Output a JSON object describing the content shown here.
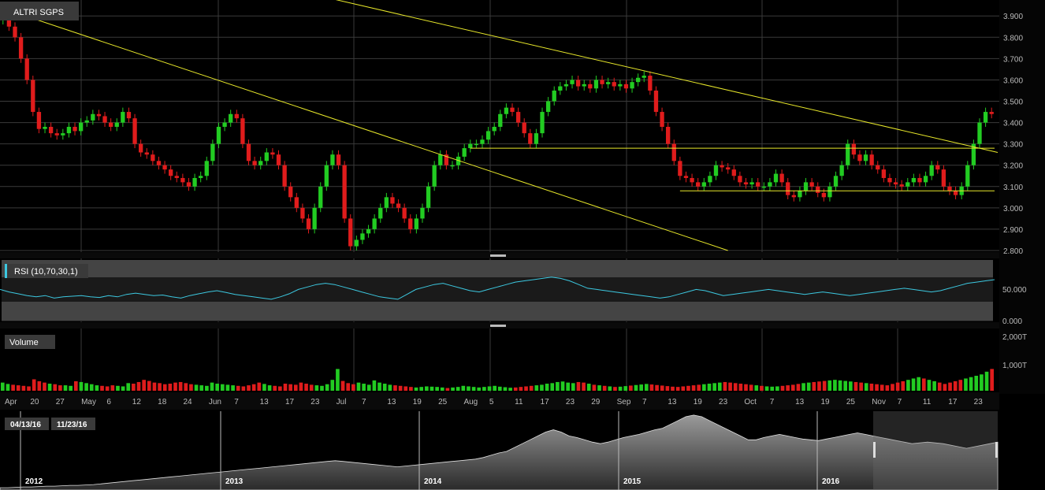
{
  "app": {
    "symbol_label": "ALTRI SGPS"
  },
  "price_panel": {
    "y_ticks": [
      "3.900",
      "3.800",
      "3.700",
      "3.600",
      "3.500",
      "3.400",
      "3.300",
      "3.200",
      "3.100",
      "3.000",
      "2.900",
      "2.800"
    ]
  },
  "rsi_panel": {
    "label": "RSI (10,70,30,1)",
    "y_ticks": [
      "50.000",
      "0.000"
    ]
  },
  "volume_panel": {
    "label": "Volume",
    "y_ticks": [
      "2,000T",
      "1,000T"
    ]
  },
  "x_axis": {
    "labels": [
      "Apr",
      "20",
      "27",
      "May",
      "6",
      "12",
      "18",
      "24",
      "Jun",
      "7",
      "13",
      "17",
      "23",
      "Jul",
      "7",
      "13",
      "19",
      "25",
      "Aug",
      "5",
      "11",
      "17",
      "23",
      "29",
      "Sep",
      "7",
      "13",
      "19",
      "23",
      "Oct",
      "7",
      "13",
      "19",
      "25",
      "Nov",
      "7",
      "11",
      "17",
      "23"
    ]
  },
  "navigator": {
    "date_from": "04/13/16",
    "date_to": "11/23/16",
    "year_labels": [
      "2012",
      "2013",
      "2014",
      "2015",
      "2016"
    ]
  },
  "colors": {
    "up": "#22cc22",
    "down": "#e01c1c",
    "trendline": "#e8e82a",
    "rsi_line": "#3cc8e0",
    "grid": "#3a3a3a",
    "panel_label_bg": "#3a3a3a"
  },
  "chart_data": [
    {
      "type": "candlestick",
      "title": "ALTRI SGPS",
      "ylim": [
        2.8,
        3.96
      ],
      "daily_close": [
        3.93,
        3.85,
        3.8,
        3.7,
        3.6,
        3.45,
        3.37,
        3.38,
        3.35,
        3.34,
        3.35,
        3.38,
        3.36,
        3.4,
        3.41,
        3.44,
        3.43,
        3.4,
        3.38,
        3.4,
        3.45,
        3.42,
        3.3,
        3.26,
        3.25,
        3.22,
        3.2,
        3.18,
        3.15,
        3.14,
        3.12,
        3.1,
        3.14,
        3.15,
        3.22,
        3.3,
        3.38,
        3.4,
        3.44,
        3.42,
        3.3,
        3.22,
        3.2,
        3.22,
        3.26,
        3.25,
        3.2,
        3.1,
        3.05,
        3.0,
        2.95,
        2.9,
        3.0,
        3.1,
        3.2,
        3.25,
        3.2,
        2.95,
        2.82,
        2.85,
        2.88,
        2.9,
        2.95,
        3.0,
        3.05,
        3.02,
        3.0,
        2.95,
        2.9,
        2.95,
        3.0,
        3.1,
        3.2,
        3.25,
        3.2,
        3.2,
        3.24,
        3.28,
        3.3,
        3.3,
        3.32,
        3.36,
        3.38,
        3.44,
        3.47,
        3.45,
        3.4,
        3.35,
        3.3,
        3.35,
        3.45,
        3.5,
        3.55,
        3.57,
        3.58,
        3.6,
        3.57,
        3.58,
        3.56,
        3.6,
        3.58,
        3.59,
        3.57,
        3.58,
        3.56,
        3.59,
        3.61,
        3.62,
        3.55,
        3.45,
        3.38,
        3.3,
        3.22,
        3.15,
        3.14,
        3.12,
        3.1,
        3.12,
        3.15,
        3.2,
        3.19,
        3.18,
        3.15,
        3.12,
        3.11,
        3.12,
        3.1,
        3.1,
        3.12,
        3.16,
        3.12,
        3.06,
        3.05,
        3.08,
        3.12,
        3.1,
        3.07,
        3.05,
        3.1,
        3.15,
        3.2,
        3.3,
        3.25,
        3.22,
        3.25,
        3.2,
        3.18,
        3.14,
        3.12,
        3.11,
        3.1,
        3.12,
        3.14,
        3.12,
        3.15,
        3.2,
        3.18,
        3.1,
        3.08,
        3.06,
        3.1,
        3.2,
        3.3,
        3.4,
        3.45,
        3.44
      ]
    },
    {
      "type": "line",
      "title": "RSI (10,70,30,1)",
      "ylim": [
        0,
        100
      ],
      "levels": [
        30,
        70
      ],
      "values": [
        52,
        48,
        45,
        42,
        40,
        42,
        38,
        40,
        41,
        42,
        40,
        39,
        42,
        40,
        44,
        46,
        44,
        42,
        43,
        40,
        38,
        42,
        45,
        48,
        50,
        47,
        44,
        42,
        40,
        38,
        36,
        40,
        45,
        52,
        56,
        60,
        62,
        60,
        56,
        52,
        48,
        44,
        40,
        38,
        36,
        44,
        52,
        56,
        60,
        62,
        58,
        54,
        50,
        48,
        52,
        56,
        60,
        64,
        66,
        68,
        70,
        72,
        70,
        66,
        60,
        54,
        52,
        50,
        48,
        46,
        44,
        42,
        40,
        38,
        40,
        44,
        48,
        52,
        50,
        46,
        42,
        44,
        46,
        48,
        50,
        52,
        50,
        48,
        46,
        44,
        46,
        48,
        46,
        44,
        42,
        44,
        46,
        48,
        50,
        52,
        54,
        52,
        50,
        48,
        50,
        54,
        58,
        62,
        64,
        66,
        68
      ]
    },
    {
      "type": "bar",
      "title": "Volume",
      "ylim": [
        0,
        2200
      ],
      "values": [
        300,
        250,
        220,
        200,
        180,
        160,
        420,
        350,
        300,
        260,
        240,
        200,
        200,
        180,
        350,
        320,
        280,
        240,
        200,
        180,
        160,
        200,
        180,
        160,
        280,
        260,
        320,
        400,
        360,
        300,
        280,
        240,
        260,
        300,
        320,
        280,
        240,
        220,
        200,
        180,
        300,
        260,
        240,
        220,
        200,
        180,
        160,
        200,
        240,
        300,
        250,
        200,
        180,
        160,
        260,
        240,
        220,
        300,
        260,
        220,
        200,
        180,
        240,
        400,
        800,
        360,
        280,
        240,
        300,
        260,
        220,
        380,
        300,
        260,
        220,
        200,
        180,
        160,
        140,
        120,
        140,
        160,
        150,
        140,
        120,
        100,
        120,
        140,
        180,
        160,
        140,
        120,
        140,
        160,
        180,
        150,
        130,
        110,
        120,
        140,
        160,
        180,
        200,
        220,
        260,
        280,
        320,
        340,
        300,
        280,
        320,
        300,
        260,
        220,
        200,
        180,
        160,
        140,
        150,
        170,
        190,
        210,
        230,
        250,
        230,
        210,
        190,
        170,
        150,
        140,
        160,
        180,
        200,
        220,
        240,
        260,
        280,
        300,
        320,
        300,
        280,
        260,
        240,
        220,
        200,
        180,
        160,
        150,
        160,
        180,
        200,
        220,
        250,
        280,
        300,
        320,
        340,
        360,
        380,
        400,
        380,
        360,
        340,
        320,
        300,
        280,
        260,
        240,
        220,
        200,
        250,
        300,
        350,
        400,
        450,
        500,
        450,
        400,
        350,
        300,
        250,
        300,
        350,
        400,
        450,
        500,
        550,
        600,
        700,
        800
      ]
    },
    {
      "type": "area",
      "title": "",
      "ylim": [
        0,
        10
      ],
      "values": [
        0.3,
        0.3,
        0.35,
        0.4,
        0.4,
        0.45,
        0.5,
        0.5,
        0.55,
        0.6,
        0.6,
        0.65,
        0.7,
        0.8,
        0.9,
        1.0,
        1.1,
        1.2,
        1.3,
        1.4,
        1.5,
        1.6,
        1.7,
        1.8,
        1.9,
        2.0,
        2.1,
        2.2,
        2.3,
        2.4,
        2.5,
        2.6,
        2.7,
        2.8,
        2.9,
        3.0,
        3.1,
        3.2,
        3.3,
        3.4,
        3.5,
        3.6,
        3.7,
        3.8,
        3.7,
        3.6,
        3.5,
        3.4,
        3.3,
        3.2,
        3.1,
        3.0,
        3.1,
        3.2,
        3.3,
        3.4,
        3.5,
        3.6,
        3.7,
        3.8,
        3.9,
        4.0,
        4.2,
        4.5,
        4.8,
        5.0,
        5.5,
        6.0,
        6.5,
        7.0,
        7.5,
        7.8,
        7.5,
        7.0,
        6.8,
        6.5,
        6.2,
        6.0,
        6.2,
        6.5,
        6.8,
        7.0,
        7.2,
        7.5,
        7.8,
        8.0,
        8.5,
        9.0,
        9.5,
        9.7,
        9.5,
        9.0,
        8.5,
        8.0,
        7.5,
        7.0,
        6.5,
        6.5,
        6.8,
        7.0,
        7.2,
        7.0,
        6.8,
        6.6,
        6.5,
        6.4,
        6.6,
        6.8,
        7.0,
        7.2,
        7.4,
        7.2,
        7.0,
        6.8,
        6.6,
        6.4,
        6.2,
        6.0,
        6.1,
        6.2,
        6.1,
        6.0,
        5.8,
        5.6,
        5.4,
        5.6,
        5.8,
        6.0,
        6.2
      ]
    }
  ]
}
